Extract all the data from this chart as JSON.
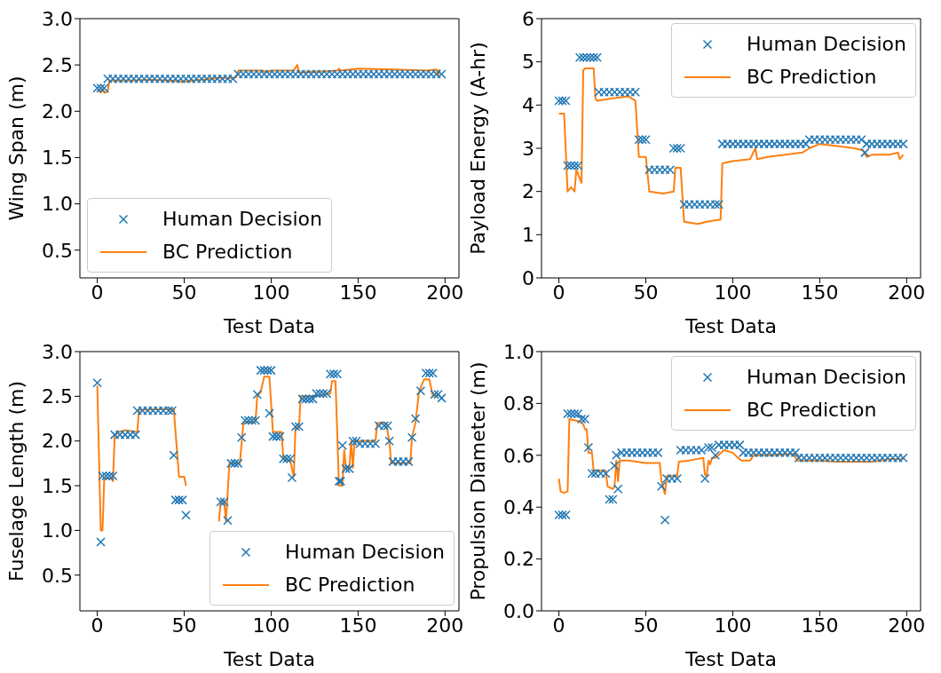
{
  "chart_data": [
    {
      "type": "scatter",
      "xlabel": "Test Data",
      "ylabel": "Wing Span (m)",
      "xlim": [
        -10,
        208
      ],
      "xticks": [
        0,
        50,
        100,
        150,
        200
      ],
      "ylim": [
        0.2,
        3.0
      ],
      "yticks": [
        0.5,
        {
          "value": 1,
          "label": "1.0"
        },
        1.5,
        {
          "value": 2,
          "label": "2.0"
        },
        2.5,
        {
          "value": 3,
          "label": "3.0"
        }
      ],
      "legend": "bottom left",
      "grid": false,
      "series": [
        {
          "name": "Human Decision",
          "marker": "cross",
          "color": "#1f77b4",
          "x": [
            0,
            2,
            4,
            6,
            9,
            12,
            15,
            18,
            21,
            24,
            27,
            30,
            33,
            36,
            39,
            42,
            45,
            48,
            51,
            54,
            57,
            60,
            63,
            66,
            69,
            72,
            75,
            78,
            81,
            84,
            87,
            90,
            93,
            96,
            99,
            102,
            105,
            108,
            111,
            114,
            117,
            120,
            123,
            126,
            129,
            132,
            135,
            138,
            141,
            144,
            147,
            150,
            153,
            156,
            159,
            162,
            165,
            168,
            171,
            174,
            177,
            180,
            183,
            186,
            189,
            192,
            195,
            198
          ],
          "values": [
            2.25,
            2.25,
            2.25,
            2.35,
            2.35,
            2.35,
            2.35,
            2.35,
            2.35,
            2.35,
            2.35,
            2.35,
            2.35,
            2.35,
            2.35,
            2.35,
            2.35,
            2.35,
            2.35,
            2.35,
            2.35,
            2.35,
            2.35,
            2.35,
            2.35,
            2.35,
            2.35,
            2.35,
            2.4,
            2.4,
            2.4,
            2.4,
            2.4,
            2.4,
            2.4,
            2.4,
            2.4,
            2.4,
            2.4,
            2.4,
            2.4,
            2.4,
            2.4,
            2.4,
            2.4,
            2.4,
            2.4,
            2.4,
            2.4,
            2.4,
            2.4,
            2.4,
            2.4,
            2.4,
            2.4,
            2.4,
            2.4,
            2.4,
            2.4,
            2.4,
            2.4,
            2.4,
            2.4,
            2.4,
            2.4,
            2.4,
            2.4,
            2.4
          ]
        },
        {
          "name": "BC Prediction",
          "type": "line",
          "marker": "none",
          "color": "#ff7f0e",
          "x": [
            0,
            1,
            2,
            3,
            4,
            6,
            7,
            20,
            30,
            40,
            50,
            60,
            70,
            78,
            80,
            81,
            95,
            97,
            100,
            113,
            115,
            116,
            130,
            138,
            139,
            140,
            150,
            170,
            190,
            195,
            196,
            197
          ],
          "values": [
            2.22,
            2.22,
            2.2,
            2.24,
            2.2,
            2.21,
            2.33,
            2.33,
            2.34,
            2.33,
            2.32,
            2.34,
            2.36,
            2.36,
            2.37,
            2.44,
            2.44,
            2.42,
            2.44,
            2.44,
            2.5,
            2.42,
            2.43,
            2.44,
            2.46,
            2.44,
            2.46,
            2.45,
            2.44,
            2.45,
            2.39,
            2.45
          ]
        }
      ]
    },
    {
      "type": "scatter",
      "xlabel": "Test Data",
      "ylabel": "Payload Energy (A-hr)",
      "xlim": [
        -10,
        208
      ],
      "xticks": [
        0,
        50,
        100,
        150,
        200
      ],
      "ylim": [
        0,
        6
      ],
      "yticks": [
        0,
        1,
        2,
        3,
        4,
        5,
        6
      ],
      "legend": "top right",
      "grid": false,
      "series": [
        {
          "name": "Human Decision",
          "marker": "cross",
          "color": "#1f77b4",
          "x": [
            0,
            2,
            4,
            5,
            7,
            9,
            11,
            12,
            14,
            16,
            18,
            20,
            22,
            23,
            26,
            29,
            32,
            35,
            38,
            41,
            44,
            46,
            48,
            50,
            52,
            55,
            58,
            61,
            64,
            66,
            68,
            70,
            72,
            75,
            78,
            81,
            84,
            87,
            90,
            92,
            94,
            97,
            100,
            103,
            106,
            109,
            112,
            115,
            118,
            121,
            124,
            127,
            130,
            133,
            136,
            139,
            142,
            144,
            147,
            150,
            153,
            156,
            159,
            162,
            165,
            168,
            171,
            174,
            176,
            177,
            180,
            183,
            186,
            189,
            192,
            195,
            198
          ],
          "values": [
            4.1,
            4.1,
            4.1,
            2.6,
            2.6,
            2.6,
            2.6,
            5.1,
            5.1,
            5.1,
            5.1,
            5.1,
            5.1,
            4.3,
            4.3,
            4.3,
            4.3,
            4.3,
            4.3,
            4.3,
            4.3,
            3.2,
            3.2,
            3.2,
            2.5,
            2.5,
            2.5,
            2.5,
            2.5,
            3.0,
            3.0,
            3.0,
            1.7,
            1.7,
            1.7,
            1.7,
            1.7,
            1.7,
            1.7,
            1.7,
            3.1,
            3.1,
            3.1,
            3.1,
            3.1,
            3.1,
            3.1,
            3.1,
            3.1,
            3.1,
            3.1,
            3.1,
            3.1,
            3.1,
            3.1,
            3.1,
            3.1,
            3.2,
            3.2,
            3.2,
            3.2,
            3.2,
            3.2,
            3.2,
            3.2,
            3.2,
            3.2,
            3.2,
            2.9,
            3.1,
            3.1,
            3.1,
            3.1,
            3.1,
            3.1,
            3.1,
            3.1
          ]
        },
        {
          "name": "BC Prediction",
          "type": "line",
          "marker": "none",
          "color": "#ff7f0e",
          "x": [
            0,
            3,
            5,
            7,
            9,
            10,
            11,
            13,
            14,
            15,
            20,
            21,
            22,
            30,
            40,
            44,
            46,
            50,
            52,
            60,
            66,
            67,
            70,
            72,
            80,
            85,
            93,
            94,
            100,
            110,
            113,
            114,
            120,
            130,
            140,
            144,
            150,
            160,
            170,
            175,
            177,
            180,
            190,
            195,
            196,
            198
          ],
          "values": [
            3.8,
            3.8,
            2.0,
            2.1,
            2.0,
            2.5,
            2.4,
            2.2,
            4.8,
            4.85,
            4.85,
            4.15,
            4.1,
            4.15,
            4.2,
            4.1,
            2.8,
            2.8,
            2.0,
            1.95,
            2.0,
            2.55,
            2.55,
            1.3,
            1.25,
            1.3,
            1.35,
            2.65,
            2.7,
            2.75,
            3.0,
            2.75,
            2.8,
            2.85,
            2.9,
            3.0,
            3.1,
            3.05,
            3.0,
            2.95,
            2.8,
            2.85,
            2.85,
            2.9,
            2.75,
            2.85
          ]
        }
      ]
    },
    {
      "type": "scatter",
      "xlabel": "Test Data",
      "ylabel": "Fuselage Length (m)",
      "xlim": [
        -10,
        208
      ],
      "xticks": [
        0,
        50,
        100,
        150,
        200
      ],
      "ylim": [
        0.1,
        3.0
      ],
      "yticks": [
        0.5,
        {
          "value": 1,
          "label": "1.0"
        },
        1.5,
        {
          "value": 2,
          "label": "2.0"
        },
        2.5,
        {
          "value": 3,
          "label": "3.0"
        }
      ],
      "legend": "bottom right",
      "grid": false,
      "series": [
        {
          "name": "Human Decision",
          "marker": "cross",
          "color": "#1f77b4",
          "x": [
            0,
            2,
            3,
            5,
            7,
            9,
            10,
            13,
            16,
            19,
            22,
            23,
            26,
            29,
            32,
            35,
            38,
            41,
            43,
            44,
            45,
            47,
            49,
            51,
            71,
            73,
            75,
            77,
            79,
            81,
            83,
            85,
            87,
            89,
            91,
            92,
            94,
            96,
            98,
            100,
            99,
            101,
            103,
            105,
            107,
            109,
            111,
            112,
            114,
            116,
            118,
            120,
            122,
            124,
            126,
            128,
            130,
            132,
            134,
            136,
            138,
            139,
            140,
            141,
            143,
            145,
            147,
            149,
            151,
            154,
            157,
            160,
            162,
            165,
            167,
            168,
            170,
            173,
            176,
            179,
            181,
            183,
            186,
            189,
            191,
            193,
            194,
            196,
            198
          ],
          "values": [
            2.65,
            0.87,
            1.61,
            1.61,
            1.61,
            1.61,
            2.07,
            2.07,
            2.07,
            2.07,
            2.07,
            2.34,
            2.34,
            2.34,
            2.34,
            2.34,
            2.34,
            2.34,
            2.34,
            1.84,
            1.34,
            1.34,
            1.34,
            1.17,
            1.32,
            1.32,
            1.11,
            1.75,
            1.75,
            1.75,
            2.04,
            2.23,
            2.23,
            2.23,
            2.23,
            2.52,
            2.79,
            2.79,
            2.79,
            2.79,
            2.31,
            2.05,
            2.05,
            2.05,
            1.8,
            1.8,
            1.8,
            1.59,
            2.16,
            2.16,
            2.47,
            2.47,
            2.47,
            2.47,
            2.53,
            2.53,
            2.53,
            2.53,
            2.75,
            2.75,
            2.75,
            1.55,
            1.55,
            1.95,
            1.69,
            1.69,
            2.0,
            2.0,
            1.97,
            1.97,
            1.97,
            1.97,
            2.17,
            2.17,
            2.17,
            2.0,
            1.77,
            1.77,
            1.77,
            1.77,
            2.04,
            2.25,
            2.56,
            2.76,
            2.76,
            2.76,
            2.52,
            2.52,
            2.48
          ]
        },
        {
          "name": "BC Prediction",
          "type": "line",
          "marker": "none",
          "color": "#ff7f0e",
          "x": [
            0,
            2,
            3,
            4,
            8,
            9,
            10,
            12,
            16,
            23,
            24,
            44,
            45,
            47,
            50,
            51,
            60,
            70,
            71,
            73,
            74,
            76,
            82,
            84,
            91,
            92,
            94,
            96,
            99,
            101,
            106,
            107,
            111,
            113,
            114,
            116,
            117,
            125,
            134,
            135,
            137,
            139,
            141,
            142,
            143,
            145,
            146,
            147,
            148,
            160,
            161,
            166,
            168,
            169,
            180,
            181,
            183,
            185,
            188,
            191,
            193,
            197
          ],
          "values": [
            2.62,
            1.0,
            1.0,
            1.58,
            1.58,
            1.55,
            2.05,
            2.1,
            2.12,
            2.1,
            2.35,
            2.36,
            2.1,
            1.6,
            1.6,
            1.5,
            null,
            1.1,
            1.33,
            1.33,
            1.1,
            1.75,
            1.75,
            2.2,
            2.22,
            2.5,
            2.55,
            2.72,
            2.72,
            2.1,
            2.1,
            1.8,
            1.78,
            1.6,
            2.15,
            2.15,
            2.5,
            2.5,
            2.53,
            2.67,
            2.67,
            1.5,
            1.5,
            1.9,
            1.7,
            1.7,
            2.0,
            1.7,
            2.0,
            2.0,
            2.2,
            2.2,
            2.0,
            1.75,
            1.75,
            2.05,
            2.2,
            2.55,
            2.69,
            2.69,
            2.5,
            2.52
          ]
        }
      ]
    },
    {
      "type": "scatter",
      "xlabel": "Test Data",
      "ylabel": "Propulsion Diameter (m)",
      "xlim": [
        -10,
        208
      ],
      "xticks": [
        0,
        50,
        100,
        150,
        200
      ],
      "ylim": [
        0,
        1.0
      ],
      "yticks": [
        {
          "value": 0,
          "label": "0.0"
        },
        0.2,
        0.4,
        0.6,
        0.8,
        {
          "value": 1,
          "label": "1.0"
        }
      ],
      "legend": "top right",
      "grid": false,
      "series": [
        {
          "name": "Human Decision",
          "marker": "cross",
          "color": "#1f77b4",
          "x": [
            0,
            2,
            4,
            5,
            7,
            9,
            11,
            13,
            15,
            17,
            19,
            21,
            24,
            27,
            29,
            31,
            32,
            33,
            34,
            36,
            39,
            42,
            45,
            48,
            51,
            54,
            57,
            59,
            61,
            62,
            65,
            68,
            70,
            73,
            76,
            79,
            82,
            84,
            86,
            88,
            90,
            92,
            95,
            98,
            101,
            104,
            106,
            109,
            112,
            115,
            118,
            121,
            124,
            127,
            130,
            133,
            136,
            138,
            141,
            144,
            147,
            150,
            153,
            156,
            159,
            162,
            165,
            168,
            171,
            174,
            177,
            180,
            183,
            186,
            189,
            192,
            195,
            198
          ],
          "values": [
            0.37,
            0.37,
            0.37,
            0.76,
            0.76,
            0.76,
            0.76,
            0.74,
            0.74,
            0.63,
            0.53,
            0.53,
            0.53,
            0.53,
            0.43,
            0.43,
            0.56,
            0.6,
            0.47,
            0.61,
            0.61,
            0.61,
            0.61,
            0.61,
            0.61,
            0.61,
            0.61,
            0.48,
            0.35,
            0.51,
            0.51,
            0.51,
            0.62,
            0.62,
            0.62,
            0.62,
            0.62,
            0.51,
            0.63,
            0.63,
            0.6,
            0.64,
            0.64,
            0.64,
            0.64,
            0.64,
            0.61,
            0.61,
            0.61,
            0.61,
            0.61,
            0.61,
            0.61,
            0.61,
            0.61,
            0.61,
            0.61,
            0.59,
            0.59,
            0.59,
            0.59,
            0.59,
            0.59,
            0.59,
            0.59,
            0.59,
            0.59,
            0.59,
            0.59,
            0.59,
            0.59,
            0.59,
            0.59,
            0.59,
            0.59,
            0.59,
            0.59,
            0.59
          ]
        },
        {
          "name": "BC Prediction",
          "type": "line",
          "marker": "none",
          "color": "#ff7f0e",
          "x": [
            0,
            1,
            3,
            5,
            6,
            12,
            14,
            15,
            16,
            17,
            19,
            20,
            27,
            28,
            31,
            32,
            33,
            34,
            35,
            40,
            50,
            58,
            59,
            61,
            62,
            68,
            69,
            75,
            83,
            84,
            85,
            86,
            87,
            88,
            90,
            95,
            100,
            103,
            105,
            110,
            112,
            120,
            135,
            137,
            150,
            160,
            170,
            180,
            190,
            198
          ],
          "values": [
            0.51,
            0.46,
            0.455,
            0.46,
            0.74,
            0.73,
            0.72,
            0.7,
            0.7,
            0.61,
            0.61,
            0.54,
            0.54,
            0.48,
            0.47,
            0.48,
            0.58,
            0.5,
            0.58,
            0.58,
            0.57,
            0.57,
            0.5,
            0.45,
            0.52,
            0.52,
            0.575,
            0.58,
            0.59,
            0.525,
            0.52,
            0.58,
            0.565,
            0.59,
            0.59,
            0.62,
            0.61,
            0.59,
            0.58,
            0.58,
            0.6,
            0.6,
            0.605,
            0.58,
            0.58,
            0.575,
            0.575,
            0.575,
            0.585,
            0.585
          ]
        }
      ]
    }
  ]
}
